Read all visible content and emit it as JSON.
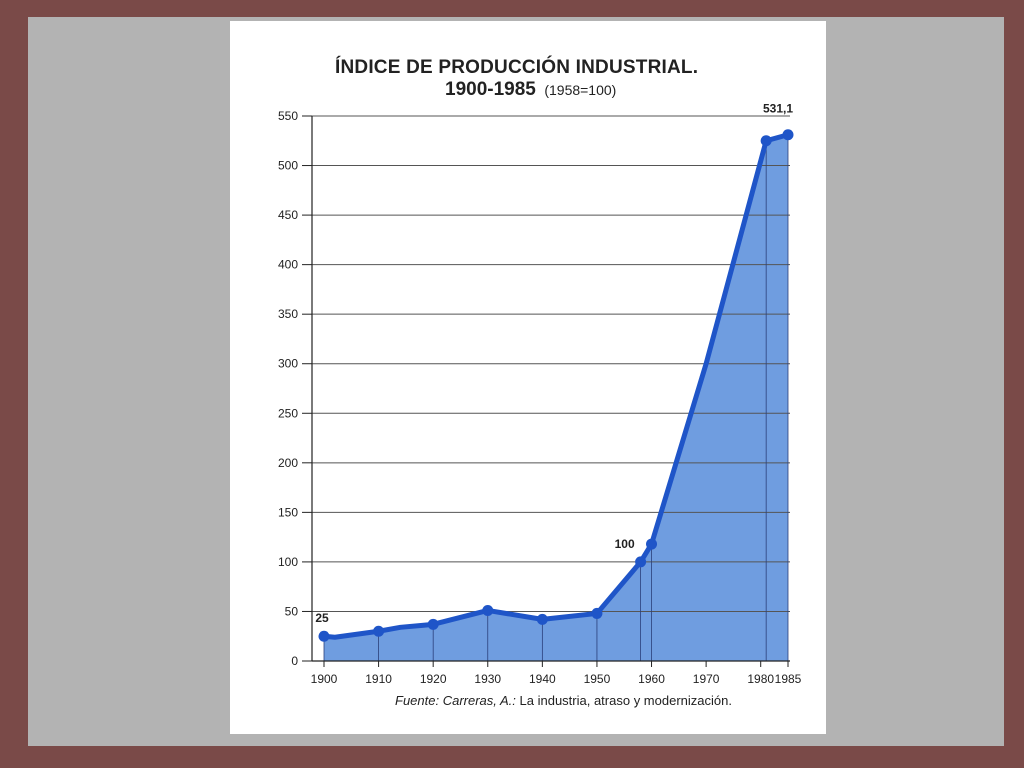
{
  "chart_data": {
    "type": "area",
    "title": "ÍNDICE DE PRODUCCIÓN INDUSTRIAL.",
    "subtitle_years": "1900-1985",
    "subtitle_base": "(1958=100)",
    "xlabel": "",
    "ylabel": "",
    "ylim": [
      0,
      550
    ],
    "yticks": [
      0,
      50,
      100,
      150,
      200,
      250,
      300,
      350,
      400,
      450,
      500,
      550
    ],
    "xticks": [
      1900,
      1910,
      1920,
      1930,
      1940,
      1950,
      1960,
      1970,
      1980,
      1985
    ],
    "grid": true,
    "series": [
      {
        "x": [
          1900,
          1902,
          1910,
          1914,
          1918,
          1920,
          1930,
          1940,
          1950,
          1958,
          1960,
          1970,
          1981,
          1985
        ],
        "y": [
          25,
          24,
          30,
          34,
          36,
          37,
          51,
          42,
          48,
          100,
          118,
          300,
          525,
          531.1
        ]
      }
    ],
    "markers_x": [
      1900,
      1910,
      1920,
      1930,
      1940,
      1950,
      1958,
      1960,
      1981,
      1985
    ],
    "annotations": [
      {
        "x": 1900,
        "y": 25,
        "text": "25"
      },
      {
        "x": 1958,
        "y": 100,
        "text": "100"
      },
      {
        "x": 1985,
        "y": 531.1,
        "text": "531,1"
      }
    ],
    "colors": {
      "line": "#1f55c8",
      "fill": "#6f9de0",
      "grid": "#555555"
    }
  },
  "source": {
    "italic": "Fuente: Carreras, A.:",
    "rest": " La industria, atraso y modernización."
  }
}
